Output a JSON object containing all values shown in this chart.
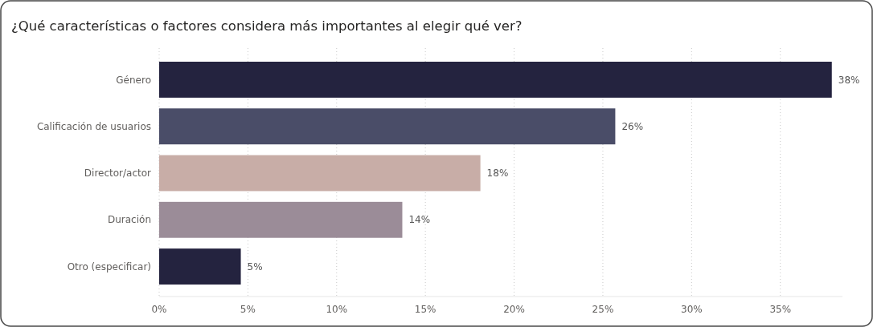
{
  "chart_data": {
    "type": "bar",
    "orientation": "horizontal",
    "title": "¿Qué características o factores considera más importantes al elegir qué ver?",
    "categories": [
      "Género",
      "Calificación de usuarios",
      "Director/actor",
      "Duración",
      "Otro (especificar)"
    ],
    "values": [
      37.9,
      25.7,
      18.1,
      13.7,
      4.6
    ],
    "value_labels": [
      "38%",
      "26%",
      "18%",
      "14%",
      "5%"
    ],
    "colors": [
      "#24233f",
      "#4a4d68",
      "#c8ada7",
      "#9b8c98",
      "#24233f"
    ],
    "xlim": [
      0,
      38.5
    ],
    "xticks": [
      {
        "value": 0,
        "label": "0%"
      },
      {
        "value": 5,
        "label": "5%"
      },
      {
        "value": 10,
        "label": "10%"
      },
      {
        "value": 15,
        "label": "15%"
      },
      {
        "value": 20,
        "label": "20%"
      },
      {
        "value": 25,
        "label": "25%"
      },
      {
        "value": 30,
        "label": "30%"
      },
      {
        "value": 35,
        "label": "35%"
      }
    ],
    "grid": "x"
  }
}
